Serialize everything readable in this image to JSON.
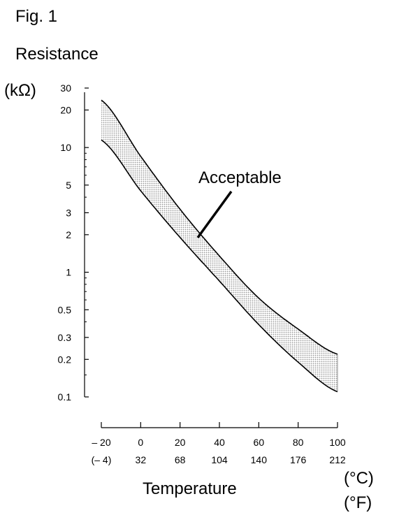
{
  "figure_label": "Fig. 1",
  "y_title": "Resistance",
  "y_unit": "(kΩ)",
  "x_title": "Temperature",
  "x_unit_c": "(°C)",
  "x_unit_f": "(°F)",
  "chart_data": {
    "type": "area",
    "title": "",
    "xlabel": "Temperature",
    "ylabel": "Resistance",
    "y_scale": "log",
    "xlim": [
      -20,
      100
    ],
    "ylim": [
      0.1,
      30
    ],
    "y_ticks": [
      {
        "value": 30,
        "label": "30"
      },
      {
        "value": 20,
        "label": "20"
      },
      {
        "value": 10,
        "label": "10"
      },
      {
        "value": 5,
        "label": "5"
      },
      {
        "value": 3,
        "label": "3"
      },
      {
        "value": 2,
        "label": "2"
      },
      {
        "value": 1,
        "label": "1"
      },
      {
        "value": 0.5,
        "label": "0.5"
      },
      {
        "value": 0.3,
        "label": "0.3"
      },
      {
        "value": 0.2,
        "label": "0.2"
      },
      {
        "value": 0.1,
        "label": "0.1"
      }
    ],
    "x_ticks_c": [
      {
        "value": -20,
        "label": "– 20"
      },
      {
        "value": 0,
        "label": "0"
      },
      {
        "value": 20,
        "label": "20"
      },
      {
        "value": 40,
        "label": "40"
      },
      {
        "value": 60,
        "label": "60"
      },
      {
        "value": 80,
        "label": "80"
      },
      {
        "value": 100,
        "label": "100"
      }
    ],
    "x_ticks_f": [
      "(– 4)",
      "32",
      "68",
      "104",
      "140",
      "176",
      "212"
    ],
    "series": [
      {
        "x": [
          -20,
          0,
          20,
          40,
          60,
          80,
          100
        ],
        "values": [
          24,
          8.5,
          3.2,
          1.35,
          0.62,
          0.35,
          0.22
        ]
      },
      {
        "x": [
          -20,
          0,
          20,
          40,
          60,
          80,
          100
        ],
        "values": [
          11.5,
          4.5,
          1.9,
          0.85,
          0.38,
          0.19,
          0.11
        ]
      }
    ],
    "fill_between_label": "Acceptable",
    "fill_color": "#bdbdbd",
    "line_color": "#000000",
    "grid": false
  }
}
